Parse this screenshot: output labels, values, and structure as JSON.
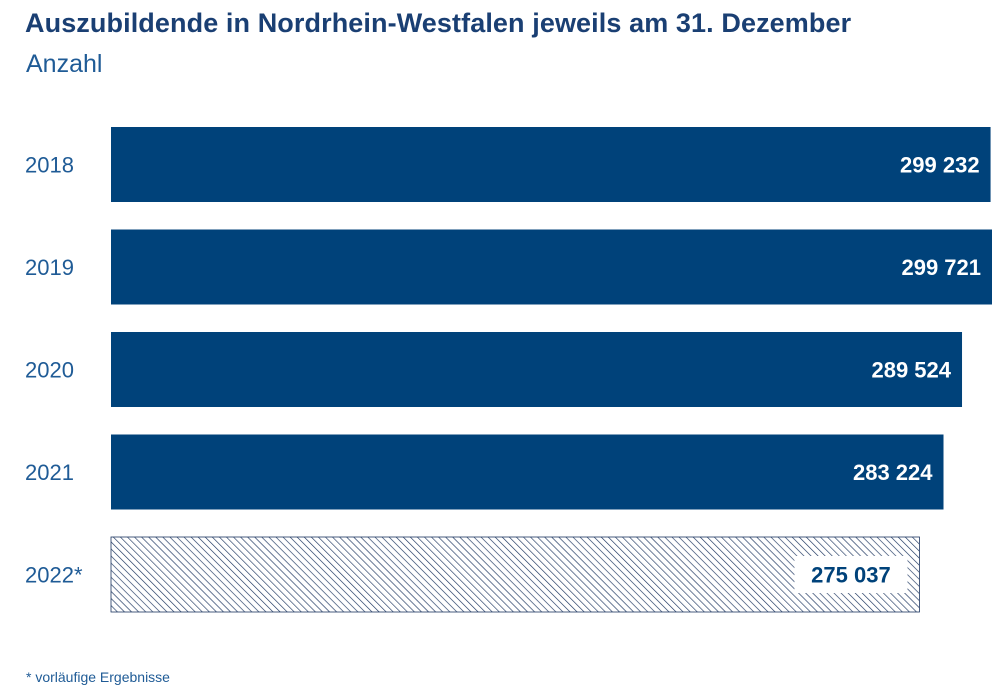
{
  "chart_data": {
    "type": "bar",
    "orientation": "horizontal",
    "title": "Auszubildende in Nordrhein-Westfalen jeweils am 31. Dezember",
    "subtitle": "Anzahl",
    "categories": [
      "2018",
      "2019",
      "2020",
      "2021",
      "2022*"
    ],
    "values": [
      299232,
      299721,
      289524,
      283224,
      275037
    ],
    "value_labels": [
      "299 232",
      "299 721",
      "289 524",
      "283 224",
      "275 037"
    ],
    "provisional": [
      false,
      false,
      false,
      false,
      true
    ],
    "xlim": [
      0,
      299721
    ],
    "grid": false,
    "footnote": "*  vorläufige Ergebnisse"
  },
  "colors": {
    "bar": "#00427a",
    "hatch": "#1c3560",
    "label_text": "#ffffff",
    "title": "#1a3f73",
    "axis_text": "#1f5b96"
  }
}
